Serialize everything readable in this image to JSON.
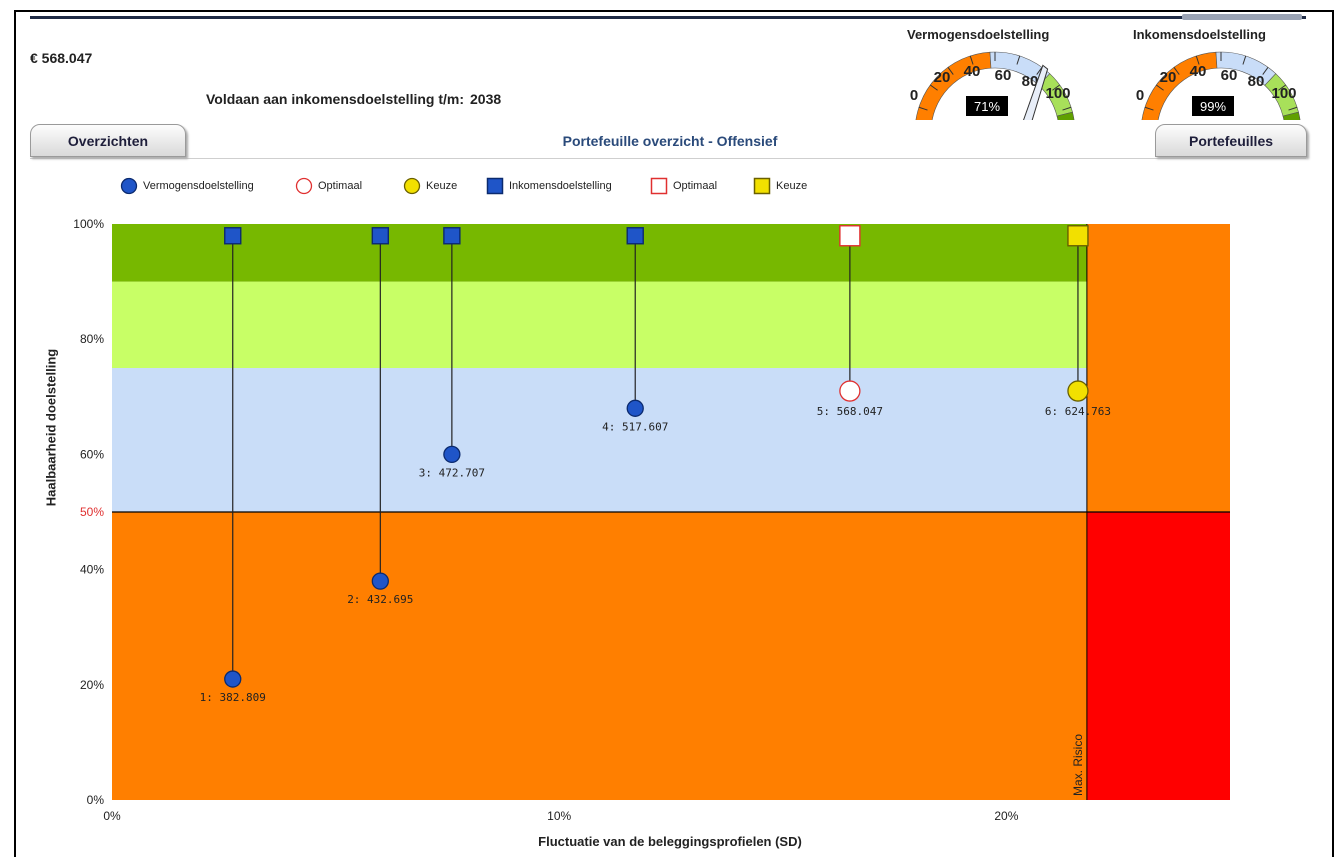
{
  "header": {
    "amount": "€ 568.047",
    "voldaan_label": "Voldaan aan inkomensdoelstelling t/m:",
    "voldaan_year": "2038"
  },
  "gauges": [
    {
      "title": "Vermogensdoelstelling",
      "value": 71,
      "value_label": "71%",
      "ticks": [
        "0",
        "20",
        "40",
        "60",
        "80",
        "100"
      ]
    },
    {
      "title": "Inkomensdoelstelling",
      "value": 99,
      "value_label": "99%",
      "ticks": [
        "0",
        "20",
        "40",
        "60",
        "80",
        "100"
      ]
    }
  ],
  "tabs": {
    "left": "Overzichten",
    "right": "Portefeuilles",
    "title": "Portefeuille overzicht - Offensief"
  },
  "legend": [
    {
      "label": "Vermogensdoelstelling",
      "shape": "circle",
      "fill": "#1f55c8",
      "stroke": "#0b2a6e"
    },
    {
      "label": "Optimaal",
      "shape": "circle",
      "fill": "#ffffff",
      "stroke": "#e03030"
    },
    {
      "label": "Keuze",
      "shape": "circle",
      "fill": "#f2e000",
      "stroke": "#6a6000"
    },
    {
      "label": "Inkomensdoelstelling",
      "shape": "square",
      "fill": "#1f55c8",
      "stroke": "#0b2a6e"
    },
    {
      "label": "Optimaal",
      "shape": "square",
      "fill": "#ffffff",
      "stroke": "#e03030"
    },
    {
      "label": "Keuze",
      "shape": "square",
      "fill": "#f2e000",
      "stroke": "#6a6000"
    }
  ],
  "chart_data": {
    "type": "scatter",
    "xlabel": "Fluctuatie van de beleggingsprofielen (SD)",
    "ylabel": "Haalbaarheid doelstelling",
    "xlim": [
      0,
      25
    ],
    "ylim": [
      0,
      100
    ],
    "x_ticks": [
      "0%",
      "10%",
      "20%"
    ],
    "x_tick_values": [
      0,
      10,
      20
    ],
    "y_ticks": [
      "0%",
      "20%",
      "40%",
      "50%",
      "60%",
      "80%",
      "100%"
    ],
    "y_tick_values": [
      0,
      20,
      40,
      50,
      60,
      80,
      100
    ],
    "highlight_y_tick": "50%",
    "bands": [
      {
        "from": 0,
        "to": 50,
        "color": "#ff7f00"
      },
      {
        "from": 50,
        "to": 75,
        "color": "#c9ddf8"
      },
      {
        "from": 75,
        "to": 90,
        "color": "#c8ff66"
      },
      {
        "from": 90,
        "to": 100,
        "color": "#77b800"
      }
    ],
    "max_risk": {
      "x": 21.8,
      "label": "Max. Risico",
      "color_low": "#ff0000",
      "color_high": "#ff7f00"
    },
    "points": [
      {
        "label": "1: 382.809",
        "x": 2.7,
        "vermogen": 21,
        "inkomen": 99,
        "kind": "normal"
      },
      {
        "label": "2: 432.695",
        "x": 6.0,
        "vermogen": 38,
        "inkomen": 99,
        "kind": "normal"
      },
      {
        "label": "3: 472.707",
        "x": 7.6,
        "vermogen": 60,
        "inkomen": 99,
        "kind": "normal"
      },
      {
        "label": "4: 517.607",
        "x": 11.7,
        "vermogen": 68,
        "inkomen": 99,
        "kind": "normal"
      },
      {
        "label": "5: 568.047",
        "x": 16.5,
        "vermogen": 71,
        "inkomen": 99,
        "kind": "optimaal"
      },
      {
        "label": "6: 624.763",
        "x": 21.6,
        "vermogen": 71,
        "inkomen": 99,
        "kind": "keuze"
      }
    ]
  }
}
